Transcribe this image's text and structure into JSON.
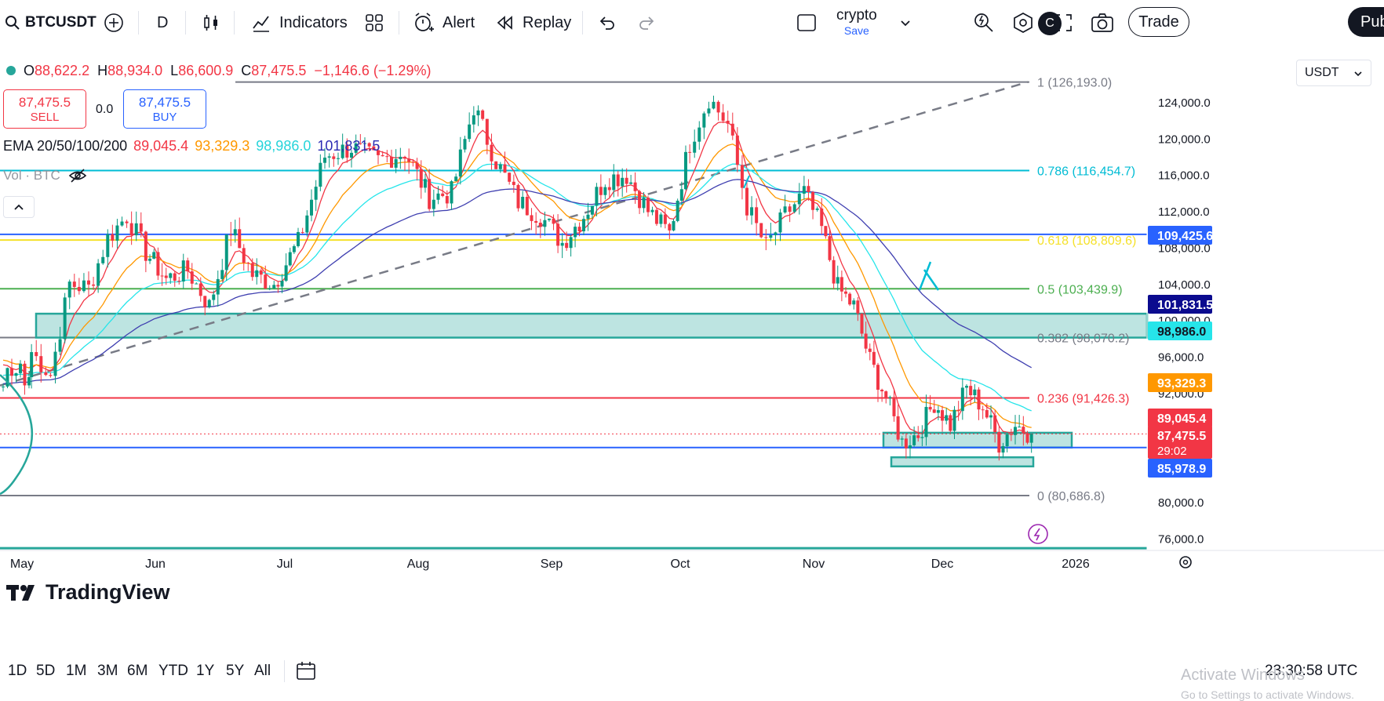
{
  "toolbar": {
    "symbol": "BTCUSDT",
    "interval": "D",
    "indicators_label": "Indicators",
    "alert_label": "Alert",
    "replay_label": "Replay",
    "layout_name": "crypto",
    "layout_save": "Save",
    "avatar_letter": "C",
    "trade_label": "Trade",
    "publish_label": "Pub"
  },
  "legend": {
    "open_label": "O",
    "open": "88,622.2",
    "high_label": "H",
    "high": "88,934.0",
    "low_label": "L",
    "low": "86,600.9",
    "close_label": "C",
    "close": "87,475.5",
    "change": "−1,146.6 (−1.29%)",
    "sell_price": "87,475.5",
    "sell_label": "SELL",
    "spread": "0.0",
    "buy_price": "87,475.5",
    "buy_label": "BUY",
    "ema_title": "EMA 20/50/100/200",
    "ema20": "89,045.4",
    "ema50": "93,329.3",
    "ema100": "98,986.0",
    "ema200": "101,831.5",
    "vol_label": "Vol · BTC"
  },
  "currency_select": "USDT",
  "chart_data": {
    "type": "candlestick",
    "symbol": "BTCUSDT",
    "interval": "1D",
    "x_axis_labels": [
      "May",
      "Jun",
      "Jul",
      "Aug",
      "Sep",
      "Oct",
      "Nov",
      "Dec",
      "2026"
    ],
    "y_axis_labels": [
      "124,000.0",
      "120,000.0",
      "116,000.0",
      "112,000.0",
      "108,000.0",
      "104,000.0",
      "100,000.0",
      "96,000.0",
      "92,000.0",
      "80,000.0",
      "76,000.0"
    ],
    "ylim": [
      74000,
      128000
    ],
    "close_path": [
      {
        "d": "May",
        "v": 96500
      },
      {
        "d": "May",
        "v": 94000
      },
      {
        "d": "May",
        "v": 104000
      },
      {
        "d": "May",
        "v": 103500
      },
      {
        "d": "May",
        "v": 109000
      },
      {
        "d": "May",
        "v": 111500
      },
      {
        "d": "May",
        "v": 107500
      },
      {
        "d": "Jun",
        "v": 104500
      },
      {
        "d": "Jun",
        "v": 105500
      },
      {
        "d": "Jun",
        "v": 101500
      },
      {
        "d": "Jun",
        "v": 110000
      },
      {
        "d": "Jun",
        "v": 105000
      },
      {
        "d": "Jun",
        "v": 104000
      },
      {
        "d": "Jul",
        "v": 108500
      },
      {
        "d": "Jul",
        "v": 118000
      },
      {
        "d": "Jul",
        "v": 119000
      },
      {
        "d": "Jul",
        "v": 117500
      },
      {
        "d": "Jul",
        "v": 118500
      },
      {
        "d": "Aug",
        "v": 113500
      },
      {
        "d": "Aug",
        "v": 114000
      },
      {
        "d": "Aug",
        "v": 123500
      },
      {
        "d": "Aug",
        "v": 117500
      },
      {
        "d": "Aug",
        "v": 113000
      },
      {
        "d": "Aug",
        "v": 111500
      },
      {
        "d": "Sep",
        "v": 108500
      },
      {
        "d": "Sep",
        "v": 111500
      },
      {
        "d": "Sep",
        "v": 115500
      },
      {
        "d": "Sep",
        "v": 116000
      },
      {
        "d": "Sep",
        "v": 112000
      },
      {
        "d": "Sep",
        "v": 109500
      },
      {
        "d": "Oct",
        "v": 119500
      },
      {
        "d": "Oct",
        "v": 124500
      },
      {
        "d": "Oct",
        "v": 121500
      },
      {
        "d": "Oct",
        "v": 112500
      },
      {
        "d": "Oct",
        "v": 108000
      },
      {
        "d": "Oct",
        "v": 111500
      },
      {
        "d": "Oct",
        "v": 114000
      },
      {
        "d": "Nov",
        "v": 110000
      },
      {
        "d": "Nov",
        "v": 103500
      },
      {
        "d": "Nov",
        "v": 101500
      },
      {
        "d": "Nov",
        "v": 95500
      },
      {
        "d": "Nov",
        "v": 91500
      },
      {
        "d": "Nov",
        "v": 86500
      },
      {
        "d": "Nov",
        "v": 87500
      },
      {
        "d": "Nov",
        "v": 91000
      },
      {
        "d": "Dec",
        "v": 88500
      },
      {
        "d": "Dec",
        "v": 92500
      },
      {
        "d": "Dec",
        "v": 90500
      },
      {
        "d": "Dec",
        "v": 86500
      },
      {
        "d": "Dec",
        "v": 88500
      },
      {
        "d": "Dec",
        "v": 87475.5
      }
    ],
    "fib_levels": [
      {
        "ratio": "1",
        "value": 126193.0,
        "label": "1 (126,193.0)",
        "color": "#787b86"
      },
      {
        "ratio": "0.786",
        "value": 116454.7,
        "label": "0.786 (116,454.7)",
        "color": "#00bcd4"
      },
      {
        "ratio": "0.618",
        "value": 108809.6,
        "label": "0.618 (108,809.6)",
        "color": "#f5e12a"
      },
      {
        "ratio": "0.5",
        "value": 103439.9,
        "label": "0.5 (103,439.9)",
        "color": "#4caf50"
      },
      {
        "ratio": "0.382",
        "value": 98070.2,
        "label": "0.382 (98,070.2)",
        "color": "#787b86"
      },
      {
        "ratio": "0.236",
        "value": 91426.3,
        "label": "0.236 (91,426.3)",
        "color": "#f23645"
      },
      {
        "ratio": "0",
        "value": 80686.8,
        "label": "0 (80,686.8)",
        "color": "#787b86"
      }
    ],
    "horizontal_lines": [
      {
        "value": 109425.6,
        "color": "#2962ff"
      },
      {
        "value": 85978.9,
        "color": "#2962ff"
      }
    ],
    "price_badges": [
      {
        "value": 109425.6,
        "label": "109,425.6",
        "bg": "#2962ff",
        "fg": "#ffffff"
      },
      {
        "value": 101831.5,
        "label": "101,831.5",
        "bg": "#0b0b8f",
        "fg": "#ffffff"
      },
      {
        "value": 98986.0,
        "label": "98,986.0",
        "bg": "#26e5ea",
        "fg": "#131722"
      },
      {
        "value": 93329.3,
        "label": "93,329.3",
        "bg": "#ff9800",
        "fg": "#ffffff"
      },
      {
        "value": 89045.4,
        "label": "89,045.4",
        "bg": "#f23645",
        "fg": "#ffffff"
      },
      {
        "value": 87475.5,
        "label": "87,475.5",
        "sub": "29:02",
        "bg": "#f23645",
        "fg": "#ffffff"
      },
      {
        "value": 85978.9,
        "label": "85,978.9",
        "bg": "#2962ff",
        "fg": "#ffffff"
      }
    ],
    "zones": [
      {
        "from": 98070,
        "to": 100700,
        "start": "May",
        "color": "#26a69a"
      },
      {
        "from": 85978.9,
        "to": 87600,
        "start": "Nov",
        "color": "#26a69a"
      },
      {
        "from": 83900,
        "to": 84900,
        "start": "Nov",
        "color": "#26a69a"
      }
    ],
    "ema_series": [
      {
        "name": "EMA 20",
        "last": 89045.4,
        "color": "#f23645"
      },
      {
        "name": "EMA 50",
        "last": 93329.3,
        "color": "#ff9800"
      },
      {
        "name": "EMA 100",
        "last": 98986.0,
        "color": "#26e5ea"
      },
      {
        "name": "EMA 200",
        "last": 101831.5,
        "color": "#3f3fb0"
      }
    ],
    "trend_line": {
      "from": 92800,
      "to": 126193,
      "style": "dashed"
    },
    "teal_line": 74900
  },
  "brand": "TradingView",
  "timeframes": [
    "1D",
    "5D",
    "1M",
    "3M",
    "6M",
    "YTD",
    "1Y",
    "5Y",
    "All"
  ],
  "clock": "23:30:58 UTC",
  "watermark": {
    "line1": "Activate Windows",
    "line2": "Go to Settings to activate Windows."
  }
}
